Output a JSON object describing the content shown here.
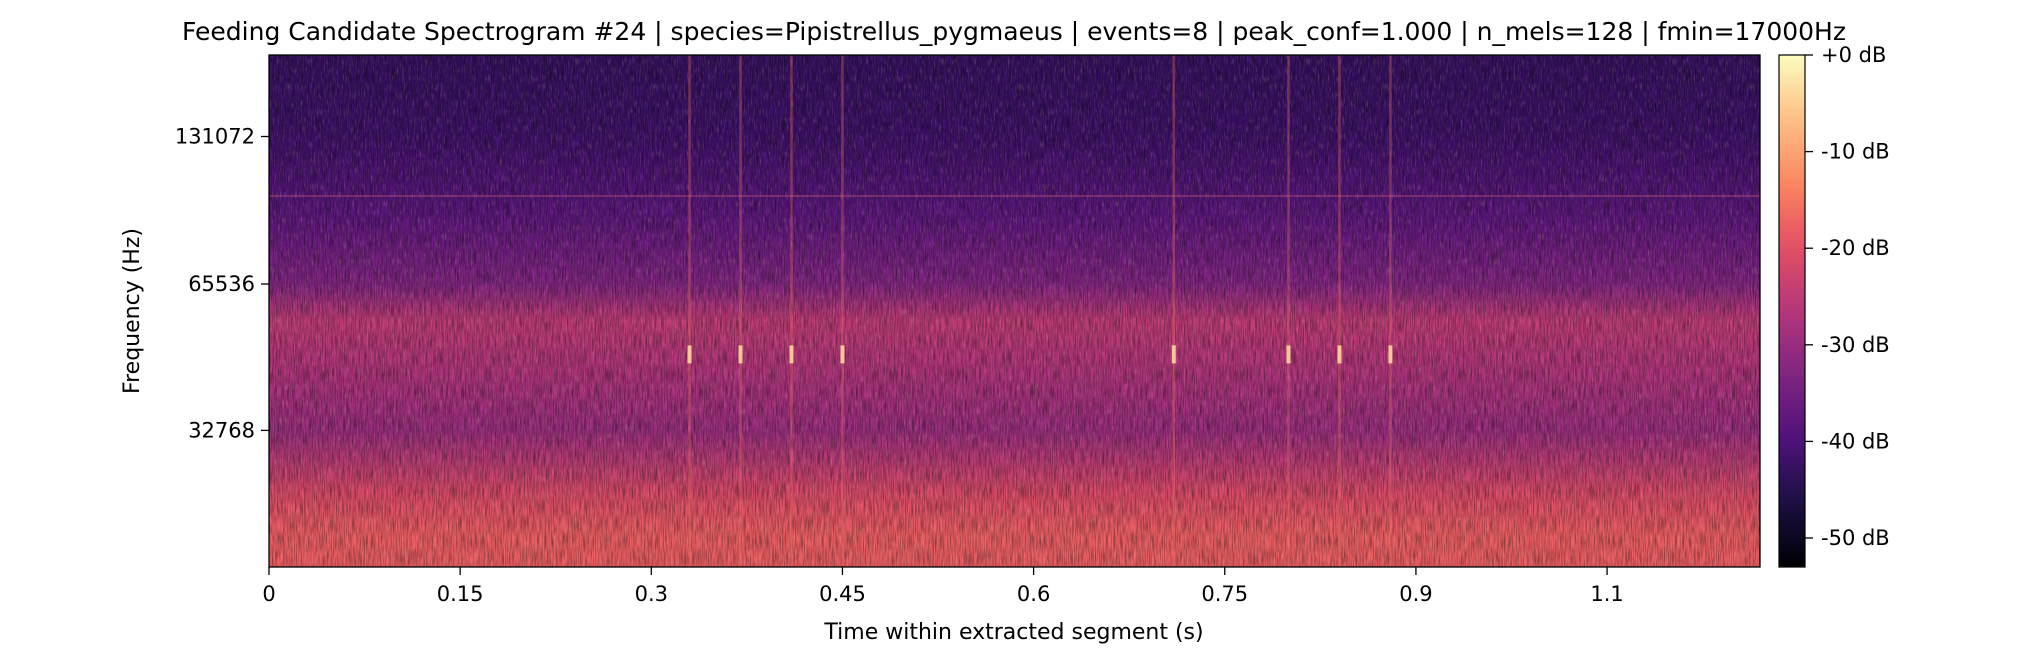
{
  "chart_data": {
    "type": "heatmap",
    "title": "Feeding Candidate Spectrogram #24 | species=Pipistrellus_pygmaeus | events=8 | peak_conf=1.000 | n_mels=128 | fmin=17000Hz",
    "xlabel": "Time within extracted segment (s)",
    "ylabel": "Frequency (Hz)",
    "x_ticks": [
      0,
      0.15,
      0.3,
      0.45,
      0.6,
      0.75,
      0.9,
      1.05
    ],
    "x_tick_labels": [
      "0",
      "0.15",
      "0.3",
      "0.45",
      "0.6",
      "0.75",
      "0.9",
      "1.1"
    ],
    "xlim": [
      0,
      1.17
    ],
    "y_scale": "mel",
    "ylim": [
      17000,
      192000
    ],
    "y_ticks": [
      32768,
      65536,
      131072
    ],
    "y_tick_labels": [
      "32768",
      "65536",
      "131072"
    ],
    "colormap": "magma",
    "colorbar": {
      "range": [
        -53,
        0
      ],
      "ticks": [
        0,
        -10,
        -20,
        -30,
        -40,
        -50
      ],
      "tick_labels": [
        "+0 dB",
        "-10 dB",
        "-20 dB",
        "-30 dB",
        "-40 dB",
        "-50 dB"
      ]
    },
    "events": {
      "count": 8,
      "peak_conf": 1.0,
      "approx_times_s": [
        0.33,
        0.37,
        0.41,
        0.45,
        0.71,
        0.8,
        0.84,
        0.88
      ]
    },
    "intensity_profile_db": [
      {
        "freq_hz": 20000,
        "level_db": -18
      },
      {
        "freq_hz": 24000,
        "level_db": -21
      },
      {
        "freq_hz": 32768,
        "level_db": -30
      },
      {
        "freq_hz": 45000,
        "level_db": -27
      },
      {
        "freq_hz": 55000,
        "level_db": -25
      },
      {
        "freq_hz": 65536,
        "level_db": -33
      },
      {
        "freq_hz": 90000,
        "level_db": -38
      },
      {
        "freq_hz": 131072,
        "level_db": -42
      },
      {
        "freq_hz": 190000,
        "level_db": -43
      }
    ]
  }
}
